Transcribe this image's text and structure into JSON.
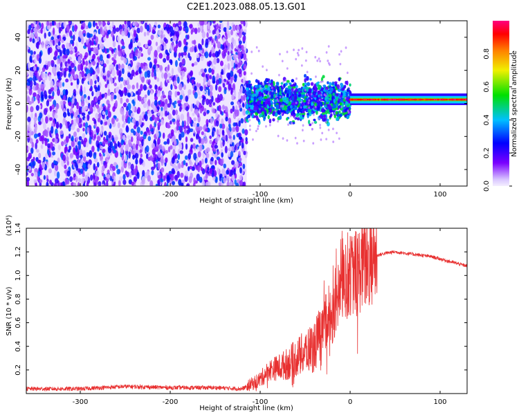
{
  "title": "C2E1.2023.088.05.13.G01",
  "colors": {
    "spectrogram_dots": "#6a00ff",
    "spectrogram_faint": "#c9b3ff",
    "snr_line": "#e83030",
    "axis": "#000000"
  },
  "chart_data": [
    {
      "type": "heatmap",
      "xlabel": "Height of straight line (km)",
      "ylabel": "Frequency (Hz)",
      "xlim": [
        -360,
        130
      ],
      "ylim": [
        -50,
        50
      ],
      "x_ticks": [
        -300,
        -200,
        -100,
        0,
        100
      ],
      "y_ticks": [
        -40,
        -20,
        0,
        20,
        40
      ],
      "grid": false,
      "colorbar": {
        "label": "Normalized spectral amplitude",
        "range": [
          0.0,
          1.0
        ],
        "ticks": [
          0.0,
          0.2,
          0.4,
          0.6,
          0.8
        ],
        "colormap": [
          "#d9c6ff",
          "#7a00ff",
          "#0000ff",
          "#00c0ff",
          "#00e000",
          "#f0f000",
          "#ff8000",
          "#ff0000",
          "#ff007f"
        ]
      },
      "regions": [
        {
          "x_range": [
            -360,
            -115
          ],
          "freq_range": [
            -50,
            50
          ],
          "amplitude": "low (0.1-0.3), broadband noise"
        },
        {
          "x_range": [
            -115,
            0
          ],
          "freq_range": [
            -15,
            18
          ],
          "amplitude": "mixed (0.2-0.5)"
        },
        {
          "x_range": [
            0,
            130
          ],
          "freq_range": [
            1,
            3
          ],
          "amplitude": "high (0.8-1.0), narrow tone near 2 Hz"
        }
      ]
    },
    {
      "type": "line",
      "xlabel": "Height of straight line (km)",
      "ylabel": "SNR (10 * v/v)",
      "y_multiplier_label": "(x10⁴)",
      "xlim": [
        -360,
        130
      ],
      "ylim": [
        0,
        1.4
      ],
      "x_ticks": [
        -300,
        -200,
        -100,
        0,
        100
      ],
      "y_ticks": [
        0.2,
        0.4,
        0.6,
        0.8,
        1.0,
        1.2,
        1.4
      ],
      "grid": false,
      "series": [
        {
          "color": "#e83030",
          "x": [
            -360,
            -300,
            -250,
            -200,
            -150,
            -120,
            -100,
            -90,
            -80,
            -70,
            -60,
            -50,
            -40,
            -30,
            -20,
            -15,
            -10,
            -5,
            0,
            10,
            20,
            30,
            40,
            50,
            60,
            70,
            80,
            90,
            100,
            110,
            120,
            130
          ],
          "y": [
            0.04,
            0.04,
            0.06,
            0.05,
            0.05,
            0.04,
            0.12,
            0.2,
            0.22,
            0.25,
            0.3,
            0.35,
            0.4,
            0.55,
            0.7,
            0.8,
            0.9,
            0.95,
            1.0,
            1.05,
            1.12,
            1.17,
            1.19,
            1.2,
            1.19,
            1.18,
            1.17,
            1.16,
            1.14,
            1.12,
            1.1,
            1.08
          ]
        }
      ]
    }
  ]
}
